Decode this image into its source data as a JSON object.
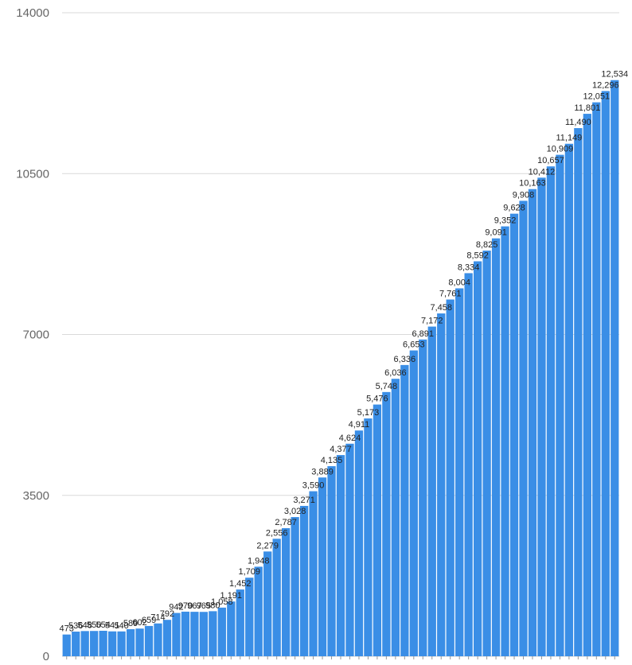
{
  "chart_data": {
    "type": "bar",
    "title": "",
    "xlabel": "",
    "ylabel": "",
    "ylim": [
      0,
      14000
    ],
    "y_ticks": [
      "0",
      "3500",
      "7000",
      "10500",
      "14000"
    ],
    "grid": true,
    "legend": "none",
    "bar_color": "#3a8ee6",
    "values": [
      473,
      536,
      548,
      550,
      554,
      541,
      540,
      589,
      602,
      659,
      714,
      792,
      942,
      970,
      967,
      965,
      980,
      1058,
      1191,
      1452,
      1709,
      1948,
      2279,
      2556,
      2787,
      3028,
      3271,
      3590,
      3889,
      4135,
      4377,
      4624,
      4911,
      5173,
      5476,
      5748,
      6036,
      6336,
      6653,
      6891,
      7172,
      7458,
      7761,
      8004,
      8334,
      8592,
      8825,
      9091,
      9352,
      9628,
      9908,
      10163,
      10412,
      10657,
      10909,
      11149,
      11490,
      11801,
      12051,
      12296,
      12534
    ],
    "value_labels": [
      "473",
      "536",
      "548",
      "550",
      "554",
      "541",
      "540",
      "589",
      "602",
      "659",
      "714",
      "792",
      "942",
      "970",
      "967",
      "965",
      "980",
      "1,058",
      "1,191",
      "1,452",
      "1,709",
      "1,948",
      "2,279",
      "2,556",
      "2,787",
      "3,028",
      "3,271",
      "3,590",
      "3,889",
      "4,135",
      "4,377",
      "4,624",
      "4,911",
      "5,173",
      "5,476",
      "5,748",
      "6,036",
      "6,336",
      "6,653",
      "6,891",
      "7,172",
      "7,458",
      "7,761",
      "8,004",
      "8,334",
      "8,592",
      "8,825",
      "9,091",
      "9,352",
      "9,628",
      "9,908",
      "10,163",
      "10,412",
      "10,657",
      "10,909",
      "11,149",
      "11,490",
      "11,801",
      "12,051",
      "12,296",
      "12,534"
    ]
  }
}
